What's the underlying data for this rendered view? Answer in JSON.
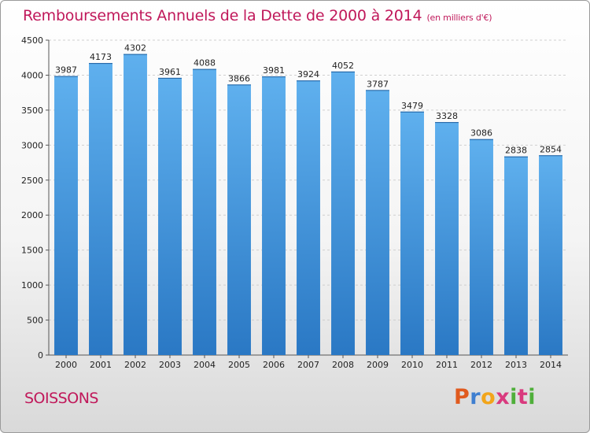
{
  "chart_data": {
    "type": "bar",
    "title": "Remboursements Annuels de la Dette de 2000 à 2014",
    "subtitle": "(en milliers d'€)",
    "categories": [
      "2000",
      "2001",
      "2002",
      "2003",
      "2004",
      "2005",
      "2006",
      "2007",
      "2008",
      "2009",
      "2010",
      "2011",
      "2012",
      "2013",
      "2014"
    ],
    "values": [
      3987,
      4173,
      4302,
      3961,
      4088,
      3866,
      3981,
      3924,
      4052,
      3787,
      3479,
      3328,
      3086,
      2838,
      2854
    ],
    "yticks": [
      0,
      500,
      1000,
      1500,
      2000,
      2500,
      3000,
      3500,
      4000,
      4500
    ],
    "ylim": [
      0,
      4500
    ],
    "xlabel": "",
    "ylabel": "",
    "grid": true,
    "bar_color": "#3f93d6"
  },
  "footer": {
    "city": "SOISSONS",
    "logo_letters": [
      "P",
      "r",
      "o",
      "x",
      "i",
      "t",
      "i"
    ],
    "logo_colors": [
      "#e05a1e",
      "#3f7fd0",
      "#f2a51a",
      "#d93a7e",
      "#4faf3a",
      "#d93a7e",
      "#4faf3a"
    ]
  }
}
